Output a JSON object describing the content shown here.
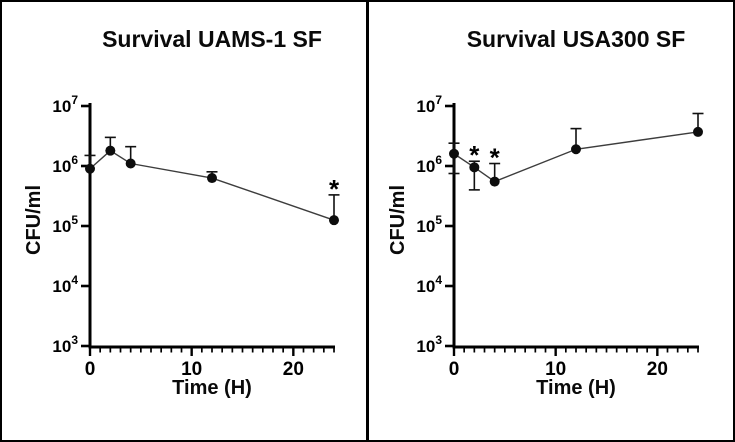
{
  "figure": {
    "background": "#ffffff",
    "border_color": "#000000",
    "divider_color": "#000000",
    "text_color": "#0a0a0a"
  },
  "chart_data": [
    {
      "type": "line",
      "title": "Survival UAMS-1 SF",
      "xlabel": "Time (H)",
      "ylabel": "CFU/ml",
      "ylog": true,
      "ylim": [
        1000,
        10000000
      ],
      "xlim": [
        0,
        24
      ],
      "y_tick_exponents": [
        3,
        4,
        5,
        6,
        7
      ],
      "x_ticks": [
        0,
        10,
        20
      ],
      "x_minor_step": 1,
      "grid": false,
      "legend": "none",
      "x": [
        0,
        2,
        4,
        12,
        24
      ],
      "y": [
        900000,
        1800000,
        1100000,
        630000,
        125000
      ],
      "error_up": [
        1500000,
        3000000,
        2100000,
        800000,
        330000
      ],
      "error_down": [
        null,
        null,
        null,
        null,
        null
      ],
      "significance": [
        "",
        "",
        "",
        "",
        "*"
      ],
      "marker_color": "#0d0d0d",
      "line_color": "#3d3d3d",
      "axis_color": "#000000"
    },
    {
      "type": "line",
      "title": "Survival USA300 SF",
      "xlabel": "Time (H)",
      "ylabel": "CFU/ml",
      "ylog": true,
      "ylim": [
        1000,
        10000000
      ],
      "xlim": [
        0,
        24
      ],
      "y_tick_exponents": [
        3,
        4,
        5,
        6,
        7
      ],
      "x_ticks": [
        0,
        10,
        20
      ],
      "x_minor_step": 1,
      "grid": false,
      "legend": "none",
      "x": [
        0,
        2,
        4,
        12,
        24
      ],
      "y": [
        1600000,
        950000,
        550000,
        1900000,
        3700000
      ],
      "error_up": [
        2400000,
        1200000,
        1100000,
        4200000,
        7500000
      ],
      "error_down": [
        750000,
        400000,
        null,
        null,
        null
      ],
      "significance": [
        "",
        "*",
        "*",
        "",
        ""
      ],
      "marker_color": "#0d0d0d",
      "line_color": "#3d3d3d",
      "axis_color": "#000000"
    }
  ]
}
